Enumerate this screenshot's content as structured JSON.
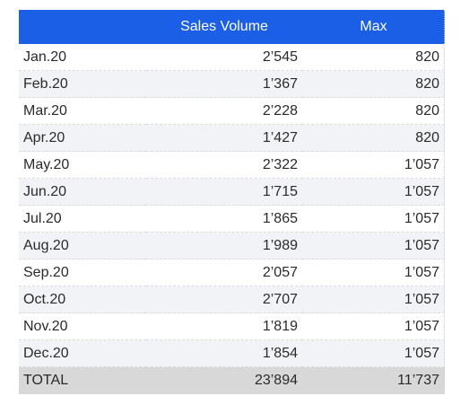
{
  "table": {
    "headers": {
      "month": "",
      "sales": "Sales Volume",
      "max": "Max"
    },
    "rows": [
      {
        "month": "Jan.20",
        "sales": "2’545",
        "max": "820"
      },
      {
        "month": "Feb.20",
        "sales": "1’367",
        "max": "820"
      },
      {
        "month": "Mar.20",
        "sales": "2’228",
        "max": "820"
      },
      {
        "month": "Apr.20",
        "sales": "1’427",
        "max": "820"
      },
      {
        "month": "May.20",
        "sales": "2’322",
        "max": "1’057"
      },
      {
        "month": "Jun.20",
        "sales": "1’715",
        "max": "1’057"
      },
      {
        "month": "Jul.20",
        "sales": "1’865",
        "max": "1’057"
      },
      {
        "month": "Aug.20",
        "sales": "1’989",
        "max": "1’057"
      },
      {
        "month": "Sep.20",
        "sales": "2’057",
        "max": "1’057"
      },
      {
        "month": "Oct.20",
        "sales": "2’707",
        "max": "1’057"
      },
      {
        "month": "Nov.20",
        "sales": "1’819",
        "max": "1’057"
      },
      {
        "month": "Dec.20",
        "sales": "1’854",
        "max": "1’057"
      }
    ],
    "total": {
      "label": "TOTAL",
      "sales": "23’894",
      "max": "11’737"
    }
  },
  "colors": {
    "header_bg": "#1a5fe6",
    "total_bg": "#d8d8d8",
    "stripe_bg": "#f2f3f6"
  }
}
